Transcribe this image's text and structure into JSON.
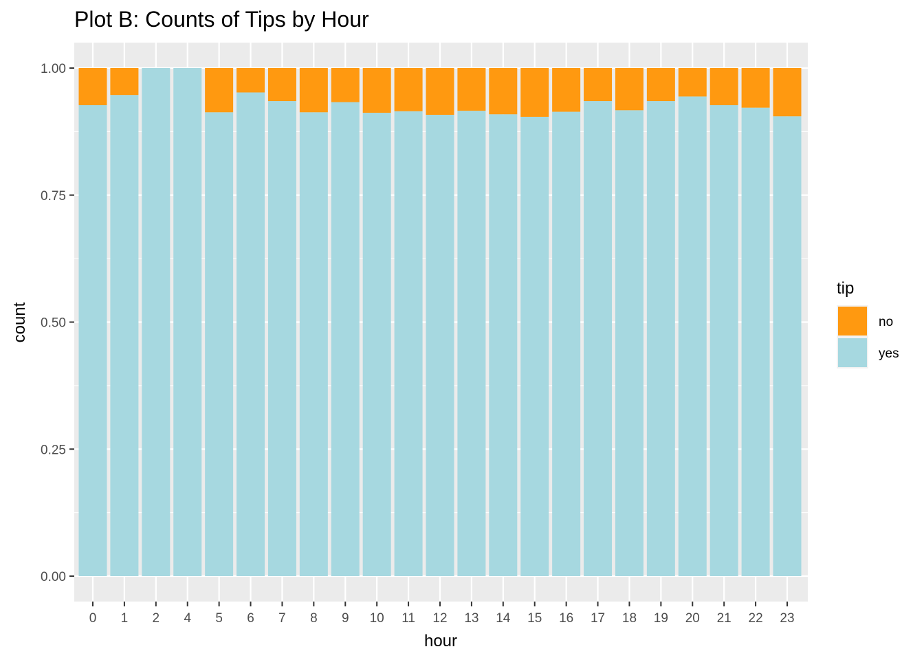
{
  "chart_data": {
    "type": "bar",
    "stacked": true,
    "title": "Plot B: Counts of Tips by Hour",
    "xlabel": "hour",
    "ylabel": "count",
    "ylim": [
      0,
      1
    ],
    "yticks": [
      "0.00",
      "0.25",
      "0.50",
      "0.75",
      "1.00"
    ],
    "categories": [
      "0",
      "1",
      "2",
      "4",
      "5",
      "6",
      "7",
      "8",
      "9",
      "10",
      "11",
      "12",
      "13",
      "14",
      "15",
      "16",
      "17",
      "18",
      "19",
      "20",
      "21",
      "22",
      "23"
    ],
    "legend": {
      "title": "tip",
      "position": "right"
    },
    "series": [
      {
        "name": "no",
        "color": "#FF9910",
        "values": [
          0.073,
          0.053,
          0.0,
          0.0,
          0.087,
          0.048,
          0.065,
          0.087,
          0.067,
          0.088,
          0.085,
          0.092,
          0.084,
          0.091,
          0.096,
          0.086,
          0.065,
          0.083,
          0.065,
          0.056,
          0.073,
          0.078,
          0.095
        ]
      },
      {
        "name": "yes",
        "color": "#A6D8E0",
        "values": [
          0.927,
          0.947,
          1.0,
          1.0,
          0.913,
          0.952,
          0.935,
          0.913,
          0.933,
          0.912,
          0.915,
          0.908,
          0.916,
          0.909,
          0.904,
          0.914,
          0.935,
          0.917,
          0.935,
          0.944,
          0.927,
          0.922,
          0.905
        ]
      }
    ],
    "grid": true,
    "panel_background": "#EBEBEB"
  }
}
